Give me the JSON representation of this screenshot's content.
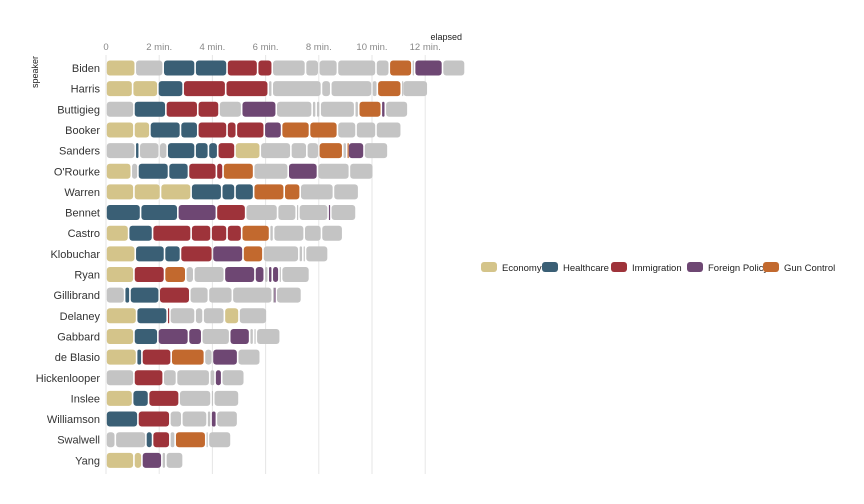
{
  "chart_data": {
    "type": "bar",
    "subtype": "stacked-timeline",
    "x_axis_title": "elapsed",
    "y_axis_title": "speaker",
    "x_ticks": [
      {
        "value": 0,
        "label": "0"
      },
      {
        "value": 2,
        "label": "2 min."
      },
      {
        "value": 4,
        "label": "4 min."
      },
      {
        "value": 6,
        "label": "6 min."
      },
      {
        "value": 8,
        "label": "8 min."
      },
      {
        "value": 10,
        "label": "10 min."
      },
      {
        "value": 12,
        "label": "12 min."
      }
    ],
    "xlim": [
      0,
      13.7
    ],
    "grid": true,
    "legend_position": "right",
    "legend": [
      {
        "topic": "Economy",
        "color": "#d4c48a"
      },
      {
        "topic": "Healthcare",
        "color": "#3a5f75"
      },
      {
        "topic": "Immigration",
        "color": "#9e333a"
      },
      {
        "topic": "Foreign Policy",
        "color": "#6e4773"
      },
      {
        "topic": "Gun Control",
        "color": "#c2692e"
      }
    ],
    "other_color": "#c4c4c4",
    "units": "minutes",
    "speakers": [
      {
        "name": "Biden",
        "segments": [
          [
            1.1,
            "Economy"
          ],
          [
            1.05,
            "Other"
          ],
          [
            1.2,
            "Healthcare"
          ],
          [
            1.2,
            "Healthcare"
          ],
          [
            1.15,
            "Immigration"
          ],
          [
            0.55,
            "Immigration"
          ],
          [
            1.25,
            "Other"
          ],
          [
            0.5,
            "Other"
          ],
          [
            0.7,
            "Other"
          ],
          [
            1.45,
            "Other"
          ],
          [
            0.5,
            "Other"
          ],
          [
            0.85,
            "Gun Control"
          ],
          [
            0.1,
            "Other"
          ],
          [
            1.05,
            "Foreign Policy"
          ],
          [
            0.85,
            "Other"
          ]
        ]
      },
      {
        "name": "Harris",
        "segments": [
          [
            1.0,
            "Economy"
          ],
          [
            0.95,
            "Economy"
          ],
          [
            0.95,
            "Healthcare"
          ],
          [
            1.6,
            "Immigration"
          ],
          [
            1.6,
            "Immigration"
          ],
          [
            0.15,
            "Other"
          ],
          [
            1.85,
            "Other"
          ],
          [
            0.35,
            "Other"
          ],
          [
            1.55,
            "Other"
          ],
          [
            0.2,
            "Other"
          ],
          [
            0.9,
            "Gun Control"
          ],
          [
            0.05,
            "Other"
          ],
          [
            0.95,
            "Other"
          ]
        ]
      },
      {
        "name": "Buttigieg",
        "segments": [
          [
            1.05,
            "Other"
          ],
          [
            1.2,
            "Healthcare"
          ],
          [
            1.2,
            "Immigration"
          ],
          [
            0.8,
            "Immigration"
          ],
          [
            0.85,
            "Other"
          ],
          [
            1.3,
            "Foreign Policy"
          ],
          [
            1.35,
            "Other"
          ],
          [
            0.15,
            "Other"
          ],
          [
            0.15,
            "Other"
          ],
          [
            1.3,
            "Other"
          ],
          [
            0.15,
            "Other"
          ],
          [
            0.85,
            "Gun Control"
          ],
          [
            0.15,
            "Foreign Policy"
          ],
          [
            0.85,
            "Other"
          ]
        ]
      },
      {
        "name": "Booker",
        "segments": [
          [
            1.05,
            "Economy"
          ],
          [
            0.6,
            "Economy"
          ],
          [
            1.15,
            "Healthcare"
          ],
          [
            0.65,
            "Healthcare"
          ],
          [
            1.1,
            "Immigration"
          ],
          [
            0.35,
            "Immigration"
          ],
          [
            1.05,
            "Immigration"
          ],
          [
            0.65,
            "Foreign Policy"
          ],
          [
            1.05,
            "Gun Control"
          ],
          [
            1.05,
            "Gun Control"
          ],
          [
            0.7,
            "Other"
          ],
          [
            0.75,
            "Other"
          ],
          [
            0.95,
            "Other"
          ]
        ]
      },
      {
        "name": "Sanders",
        "segments": [
          [
            1.1,
            "Other"
          ],
          [
            0.15,
            "Healthcare"
          ],
          [
            0.75,
            "Other"
          ],
          [
            0.3,
            "Other"
          ],
          [
            1.05,
            "Healthcare"
          ],
          [
            0.5,
            "Healthcare"
          ],
          [
            0.35,
            "Healthcare"
          ],
          [
            0.65,
            "Immigration"
          ],
          [
            0.95,
            "Economy"
          ],
          [
            1.15,
            "Other"
          ],
          [
            0.6,
            "Other"
          ],
          [
            0.45,
            "Other"
          ],
          [
            0.9,
            "Gun Control"
          ],
          [
            0.15,
            "Other"
          ],
          [
            0.05,
            "Gun Control"
          ],
          [
            0.6,
            "Foreign Policy"
          ],
          [
            0.9,
            "Other"
          ]
        ]
      },
      {
        "name": "O'Rourke",
        "segments": [
          [
            0.95,
            "Economy"
          ],
          [
            0.25,
            "Other"
          ],
          [
            1.15,
            "Healthcare"
          ],
          [
            0.75,
            "Healthcare"
          ],
          [
            1.05,
            "Immigration"
          ],
          [
            0.25,
            "Immigration"
          ],
          [
            1.15,
            "Gun Control"
          ],
          [
            1.3,
            "Other"
          ],
          [
            1.1,
            "Foreign Policy"
          ],
          [
            1.2,
            "Other"
          ],
          [
            0.9,
            "Other"
          ]
        ]
      },
      {
        "name": "Warren",
        "segments": [
          [
            1.05,
            "Economy"
          ],
          [
            1.0,
            "Economy"
          ],
          [
            1.15,
            "Economy"
          ],
          [
            1.15,
            "Healthcare"
          ],
          [
            0.5,
            "Healthcare"
          ],
          [
            0.7,
            "Healthcare"
          ],
          [
            1.15,
            "Gun Control"
          ],
          [
            0.6,
            "Gun Control"
          ],
          [
            1.25,
            "Other"
          ],
          [
            0.95,
            "Other"
          ]
        ]
      },
      {
        "name": "Bennet",
        "segments": [
          [
            1.3,
            "Healthcare"
          ],
          [
            1.4,
            "Healthcare"
          ],
          [
            1.45,
            "Foreign Policy"
          ],
          [
            1.1,
            "Immigration"
          ],
          [
            1.2,
            "Other"
          ],
          [
            0.7,
            "Other"
          ],
          [
            0.1,
            "Other"
          ],
          [
            1.1,
            "Other"
          ],
          [
            0.1,
            "Foreign Policy"
          ],
          [
            0.95,
            "Other"
          ]
        ]
      },
      {
        "name": "Castro",
        "segments": [
          [
            0.85,
            "Economy"
          ],
          [
            0.9,
            "Healthcare"
          ],
          [
            1.45,
            "Immigration"
          ],
          [
            0.75,
            "Immigration"
          ],
          [
            0.6,
            "Immigration"
          ],
          [
            0.55,
            "Immigration"
          ],
          [
            1.05,
            "Gun Control"
          ],
          [
            0.15,
            "Other"
          ],
          [
            1.15,
            "Other"
          ],
          [
            0.65,
            "Other"
          ],
          [
            0.8,
            "Other"
          ]
        ]
      },
      {
        "name": "Klobuchar",
        "segments": [
          [
            1.1,
            "Economy"
          ],
          [
            1.1,
            "Healthcare"
          ],
          [
            0.6,
            "Healthcare"
          ],
          [
            1.2,
            "Immigration"
          ],
          [
            1.15,
            "Foreign Policy"
          ],
          [
            0.75,
            "Gun Control"
          ],
          [
            1.35,
            "Other"
          ],
          [
            0.15,
            "Other"
          ],
          [
            0.1,
            "Other"
          ],
          [
            0.85,
            "Other"
          ]
        ]
      },
      {
        "name": "Ryan",
        "segments": [
          [
            1.05,
            "Economy"
          ],
          [
            1.15,
            "Immigration"
          ],
          [
            0.8,
            "Gun Control"
          ],
          [
            0.3,
            "Other"
          ],
          [
            1.15,
            "Other"
          ],
          [
            1.15,
            "Foreign Policy"
          ],
          [
            0.35,
            "Foreign Policy"
          ],
          [
            0.15,
            "Other"
          ],
          [
            0.15,
            "Foreign Policy"
          ],
          [
            0.25,
            "Foreign Policy"
          ],
          [
            0.1,
            "Other"
          ],
          [
            1.05,
            "Other"
          ]
        ]
      },
      {
        "name": "Gillibrand",
        "segments": [
          [
            0.7,
            "Other"
          ],
          [
            0.2,
            "Healthcare"
          ],
          [
            1.1,
            "Healthcare"
          ],
          [
            1.15,
            "Immigration"
          ],
          [
            0.7,
            "Other"
          ],
          [
            0.9,
            "Other"
          ],
          [
            1.5,
            "Other"
          ],
          [
            0.05,
            "Other"
          ],
          [
            0.1,
            "Foreign Policy"
          ],
          [
            0.95,
            "Other"
          ]
        ]
      },
      {
        "name": "Delaney",
        "segments": [
          [
            1.15,
            "Economy"
          ],
          [
            1.15,
            "Healthcare"
          ],
          [
            0.1,
            "Immigration"
          ],
          [
            0.95,
            "Other"
          ],
          [
            0.3,
            "Other"
          ],
          [
            0.8,
            "Other"
          ],
          [
            0.55,
            "Economy"
          ],
          [
            1.05,
            "Other"
          ]
        ]
      },
      {
        "name": "Gabbard",
        "segments": [
          [
            1.05,
            "Economy"
          ],
          [
            0.9,
            "Healthcare"
          ],
          [
            1.15,
            "Foreign Policy"
          ],
          [
            0.5,
            "Foreign Policy"
          ],
          [
            1.05,
            "Other"
          ],
          [
            0.75,
            "Foreign Policy"
          ],
          [
            0.15,
            "Other"
          ],
          [
            0.1,
            "Other"
          ],
          [
            0.9,
            "Other"
          ]
        ]
      },
      {
        "name": "de Blasio",
        "segments": [
          [
            1.15,
            "Economy"
          ],
          [
            0.2,
            "Healthcare"
          ],
          [
            1.1,
            "Immigration"
          ],
          [
            1.25,
            "Gun Control"
          ],
          [
            0.3,
            "Other"
          ],
          [
            0.95,
            "Foreign Policy"
          ],
          [
            0.85,
            "Other"
          ]
        ]
      },
      {
        "name": "Hickenlooper",
        "segments": [
          [
            1.05,
            "Other"
          ],
          [
            1.1,
            "Immigration"
          ],
          [
            0.5,
            "Other"
          ],
          [
            1.25,
            "Other"
          ],
          [
            0.2,
            "Other"
          ],
          [
            0.25,
            "Foreign Policy"
          ],
          [
            0.85,
            "Other"
          ]
        ]
      },
      {
        "name": "Inslee",
        "segments": [
          [
            1.0,
            "Economy"
          ],
          [
            0.6,
            "Healthcare"
          ],
          [
            1.15,
            "Immigration"
          ],
          [
            1.2,
            "Other"
          ],
          [
            0.1,
            "Other"
          ],
          [
            0.95,
            "Other"
          ]
        ]
      },
      {
        "name": "Williamson",
        "segments": [
          [
            1.2,
            "Healthcare"
          ],
          [
            1.2,
            "Immigration"
          ],
          [
            0.45,
            "Other"
          ],
          [
            0.95,
            "Other"
          ],
          [
            0.15,
            "Other"
          ],
          [
            0.2,
            "Foreign Policy"
          ],
          [
            0.8,
            "Other"
          ]
        ]
      },
      {
        "name": "Swalwell",
        "segments": [
          [
            0.35,
            "Other"
          ],
          [
            1.15,
            "Other"
          ],
          [
            0.25,
            "Healthcare"
          ],
          [
            0.65,
            "Immigration"
          ],
          [
            0.2,
            "Other"
          ],
          [
            1.15,
            "Gun Control"
          ],
          [
            0.1,
            "Other"
          ],
          [
            0.85,
            "Other"
          ]
        ]
      },
      {
        "name": "Yang",
        "segments": [
          [
            1.05,
            "Economy"
          ],
          [
            0.3,
            "Economy"
          ],
          [
            0.75,
            "Foreign Policy"
          ],
          [
            0.15,
            "Other"
          ],
          [
            0.65,
            "Other"
          ]
        ]
      }
    ]
  }
}
